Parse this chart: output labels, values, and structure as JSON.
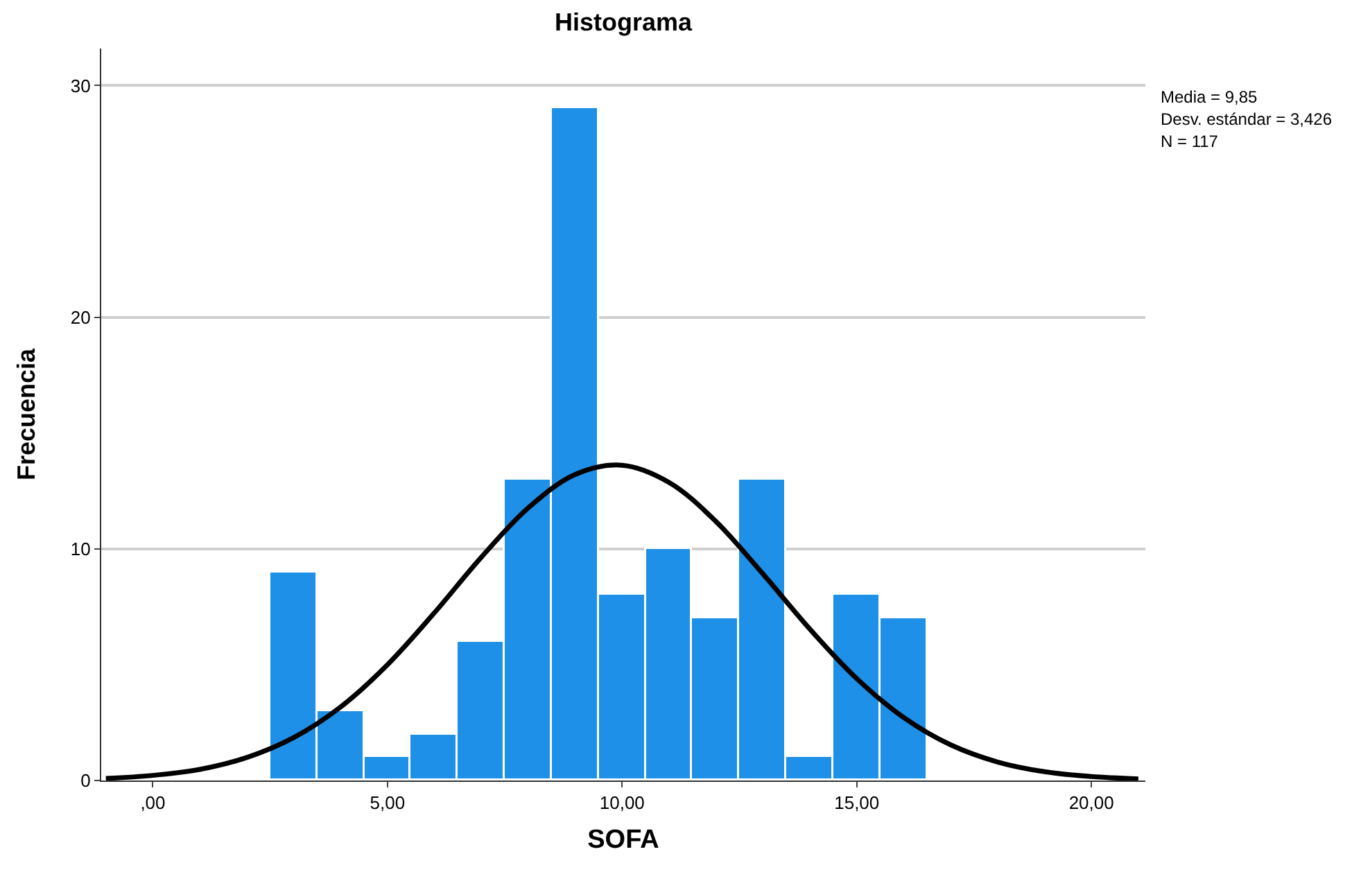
{
  "chart_data": {
    "type": "histogram",
    "title": "Histograma",
    "xlabel": "SOFA",
    "ylabel": "Frecuencia",
    "bins": [
      2.5,
      3.5,
      4.5,
      5.5,
      6.5,
      7.5,
      8.5,
      9.5,
      10.5,
      11.5,
      12.5,
      13.5,
      14.5,
      15.5,
      16.5
    ],
    "values": [
      9,
      3,
      1,
      2,
      6,
      13,
      29,
      8,
      10,
      7,
      13,
      1,
      8,
      7
    ],
    "color": "#1e90e8",
    "series": [
      {
        "type": "line",
        "color": "#000000",
        "x": [
          -1,
          0,
          1,
          2,
          3,
          4,
          5,
          6,
          7,
          8,
          9,
          10,
          11,
          12,
          13,
          14,
          15,
          16,
          17,
          18,
          19,
          20,
          21
        ],
        "values": [
          0.09,
          0.22,
          0.48,
          0.99,
          1.85,
          3.17,
          5.0,
          7.24,
          9.64,
          11.77,
          13.21,
          13.61,
          12.87,
          11.18,
          8.92,
          6.54,
          4.4,
          2.72,
          1.54,
          0.8,
          0.38,
          0.17,
          0.07
        ]
      }
    ],
    "xlim": [
      -1.1,
      21.15
    ],
    "xticks": [
      {
        "value": 0,
        "label": ",00"
      },
      {
        "value": 5,
        "label": "5,00"
      },
      {
        "value": 10,
        "label": "10,00"
      },
      {
        "value": 15,
        "label": "15,00"
      },
      {
        "value": 20,
        "label": "20,00"
      }
    ],
    "ylim": [
      0,
      31.6
    ],
    "yticks": [
      0,
      10,
      20,
      30
    ],
    "grid": "y",
    "marker": "none",
    "line_style": "solid",
    "annotations": [
      "Media = 9,85",
      "Desv. estándar = 3,426",
      "N = 117"
    ]
  }
}
